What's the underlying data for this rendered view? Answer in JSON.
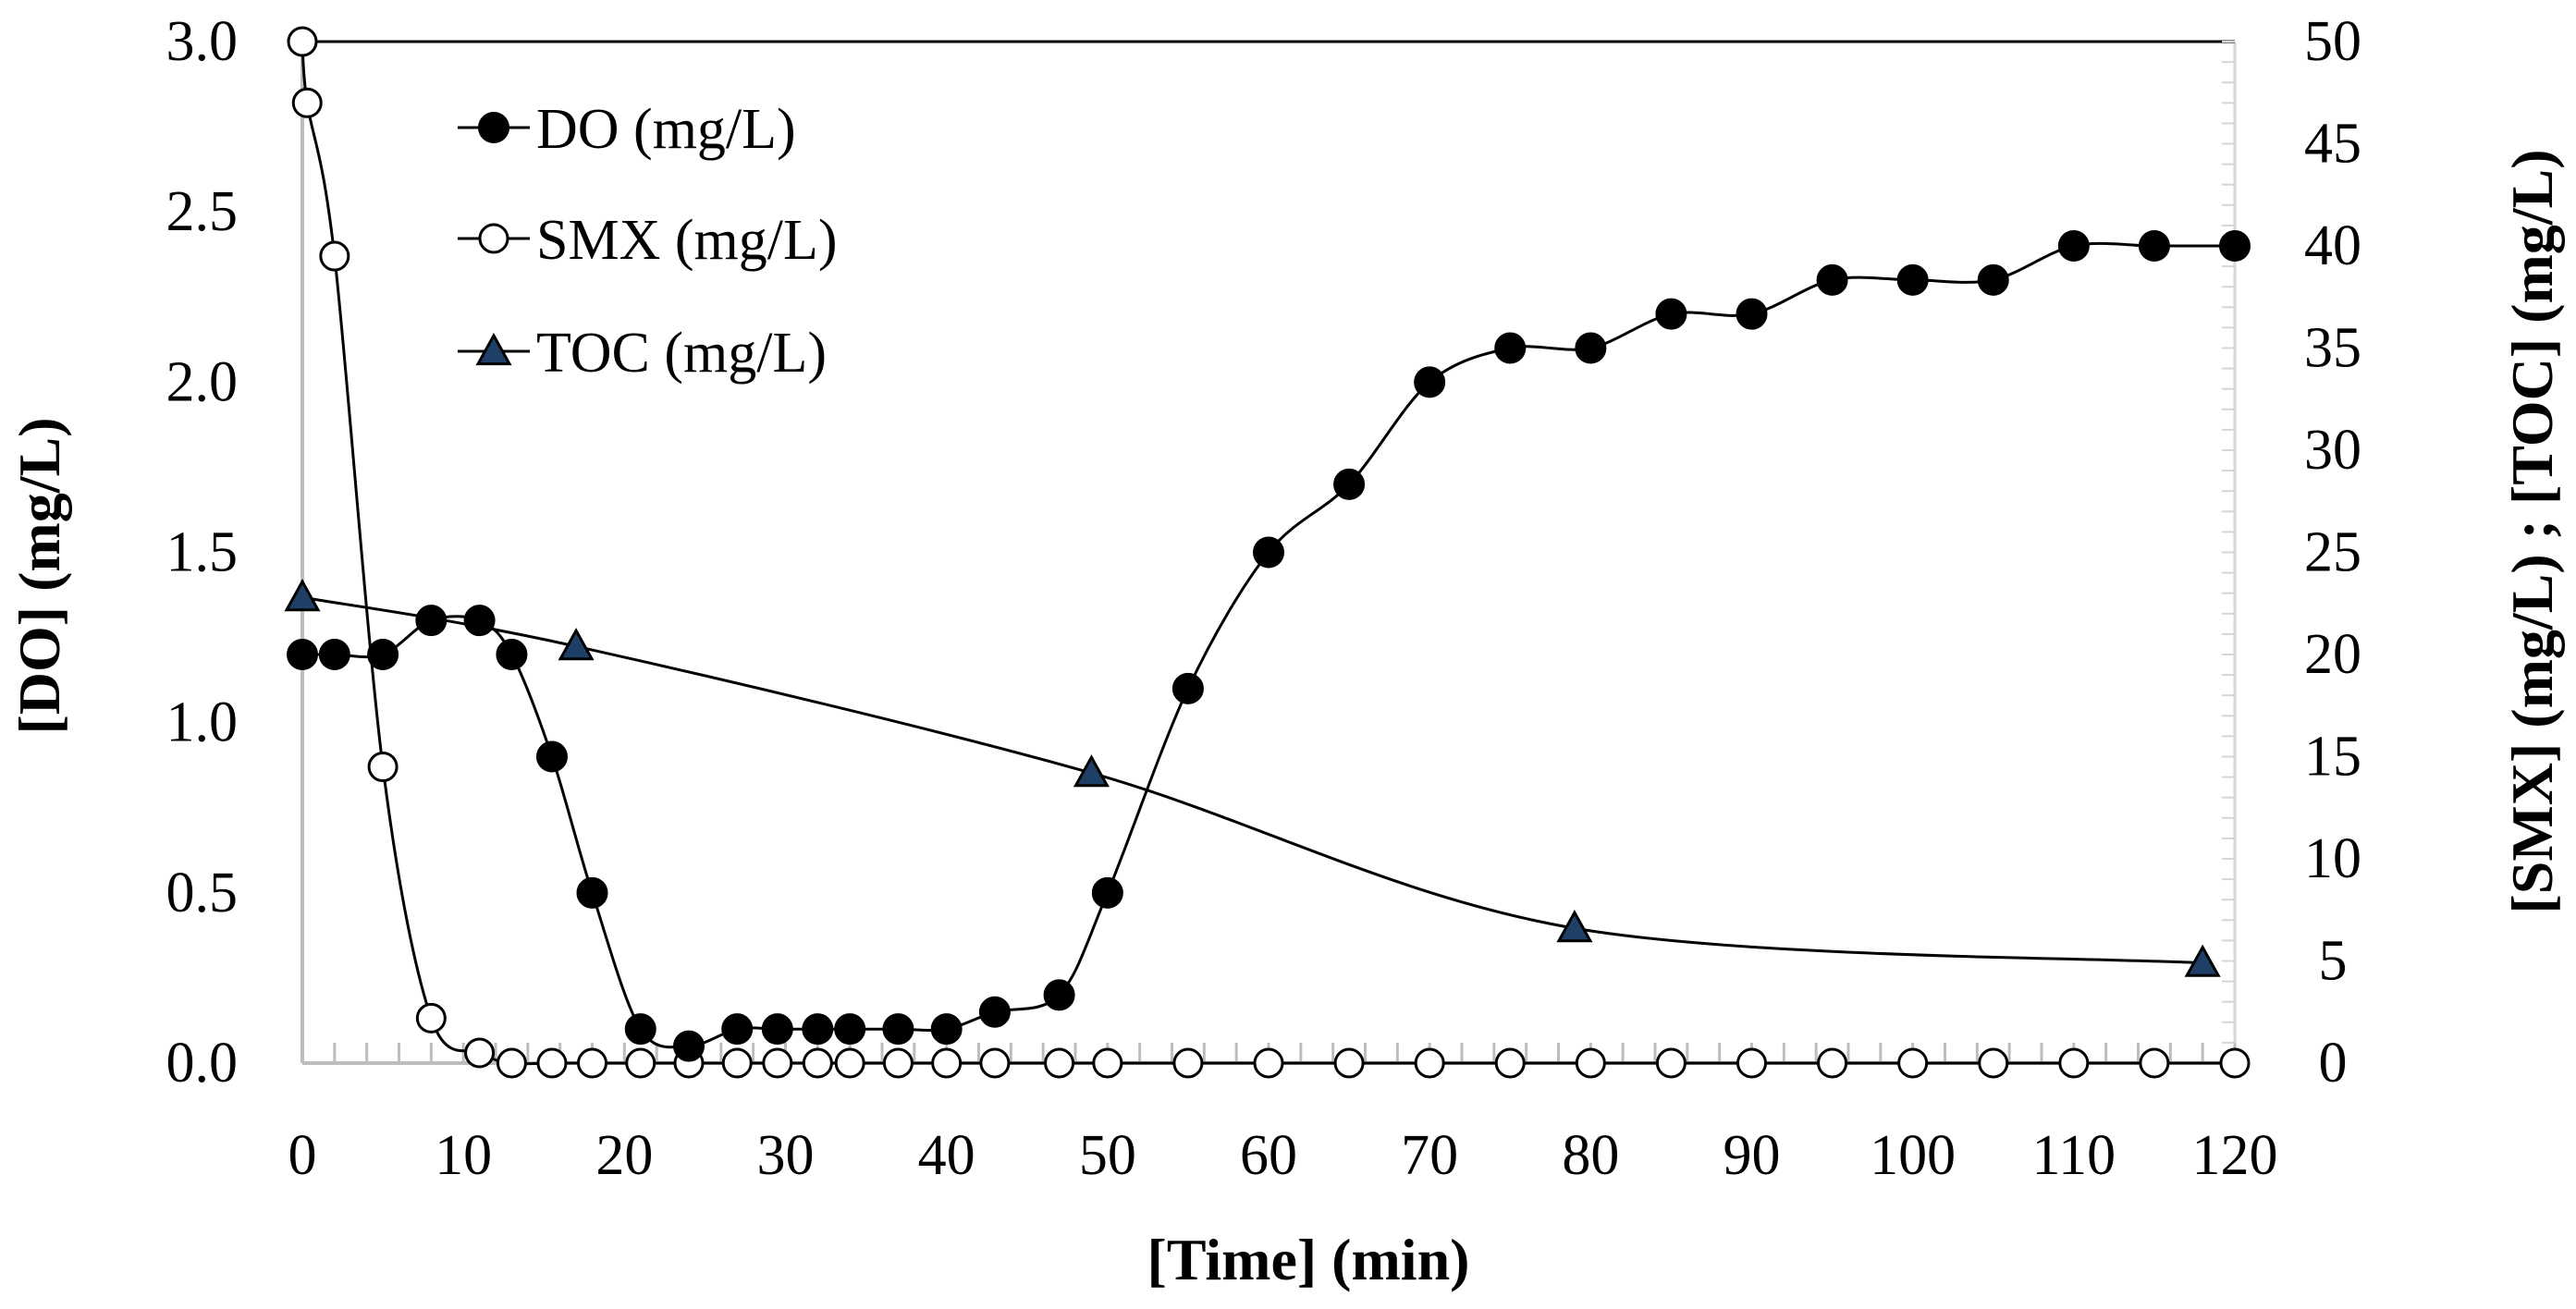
{
  "chart_data": {
    "type": "line",
    "x_axis": {
      "label": "[Time] (min)",
      "range": [
        0,
        120
      ],
      "ticks": [
        0,
        10,
        20,
        30,
        40,
        50,
        60,
        70,
        80,
        90,
        100,
        110,
        120
      ],
      "minor_step": 2
    },
    "y_axis_left": {
      "label": "[DO] (mg/L)",
      "range": [
        0,
        3
      ],
      "ticks": [
        "0.0",
        "0.5",
        "1.0",
        "1.5",
        "2.0",
        "2.5",
        "3.0"
      ]
    },
    "y_axis_right": {
      "label": "[SMX] (mg/L) ;  [TOC] (mg/L)",
      "range": [
        0,
        50
      ],
      "ticks": [
        "0",
        "5",
        "10",
        "15",
        "20",
        "25",
        "30",
        "35",
        "40",
        "45",
        "50"
      ]
    },
    "grid": false,
    "legend_position": "top-left",
    "series": [
      {
        "name": "DO (mg/L)",
        "axis": "left",
        "marker": "filled-circle",
        "points": [
          [
            0,
            1.2
          ],
          [
            2,
            1.2
          ],
          [
            5,
            1.2
          ],
          [
            8,
            1.3
          ],
          [
            11,
            1.3
          ],
          [
            13,
            1.2
          ],
          [
            15.5,
            0.9
          ],
          [
            18,
            0.5
          ],
          [
            21,
            0.1
          ],
          [
            24,
            0.05
          ],
          [
            27,
            0.1
          ],
          [
            29.5,
            0.1
          ],
          [
            32,
            0.1
          ],
          [
            34,
            0.1
          ],
          [
            37,
            0.1
          ],
          [
            40,
            0.1
          ],
          [
            43,
            0.15
          ],
          [
            47,
            0.2
          ],
          [
            50,
            0.5
          ],
          [
            55,
            1.1
          ],
          [
            60,
            1.5
          ],
          [
            65,
            1.7
          ],
          [
            70,
            2.0
          ],
          [
            75,
            2.1
          ],
          [
            80,
            2.1
          ],
          [
            85,
            2.2
          ],
          [
            90,
            2.2
          ],
          [
            95,
            2.3
          ],
          [
            100,
            2.3
          ],
          [
            105,
            2.3
          ],
          [
            110,
            2.4
          ],
          [
            115,
            2.4
          ],
          [
            120,
            2.4
          ]
        ]
      },
      {
        "name": "SMX (mg/L)",
        "axis": "right",
        "marker": "open-circle",
        "points": [
          [
            0,
            50
          ],
          [
            0.3,
            47
          ],
          [
            2,
            39.5
          ],
          [
            5,
            14.5
          ],
          [
            8,
            2.2
          ],
          [
            11,
            0.5
          ],
          [
            13,
            0
          ],
          [
            15.5,
            0
          ],
          [
            18,
            0
          ],
          [
            21,
            0
          ],
          [
            24,
            0
          ],
          [
            27,
            0
          ],
          [
            29.5,
            0
          ],
          [
            32,
            0
          ],
          [
            34,
            0
          ],
          [
            37,
            0
          ],
          [
            40,
            0
          ],
          [
            43,
            0
          ],
          [
            47,
            0
          ],
          [
            50,
            0
          ],
          [
            55,
            0
          ],
          [
            60,
            0
          ],
          [
            65,
            0
          ],
          [
            70,
            0
          ],
          [
            75,
            0
          ],
          [
            80,
            0
          ],
          [
            85,
            0
          ],
          [
            90,
            0
          ],
          [
            95,
            0
          ],
          [
            100,
            0
          ],
          [
            105,
            0
          ],
          [
            110,
            0
          ],
          [
            115,
            0
          ],
          [
            120,
            0
          ]
        ]
      },
      {
        "name": "TOC (mg/L)",
        "axis": "right",
        "marker": "triangle",
        "color": "#1f3f66",
        "points": [
          [
            0,
            22.8
          ],
          [
            17,
            20.4
          ],
          [
            49,
            14.2
          ],
          [
            79,
            6.6
          ],
          [
            118,
            4.9
          ]
        ]
      }
    ]
  }
}
